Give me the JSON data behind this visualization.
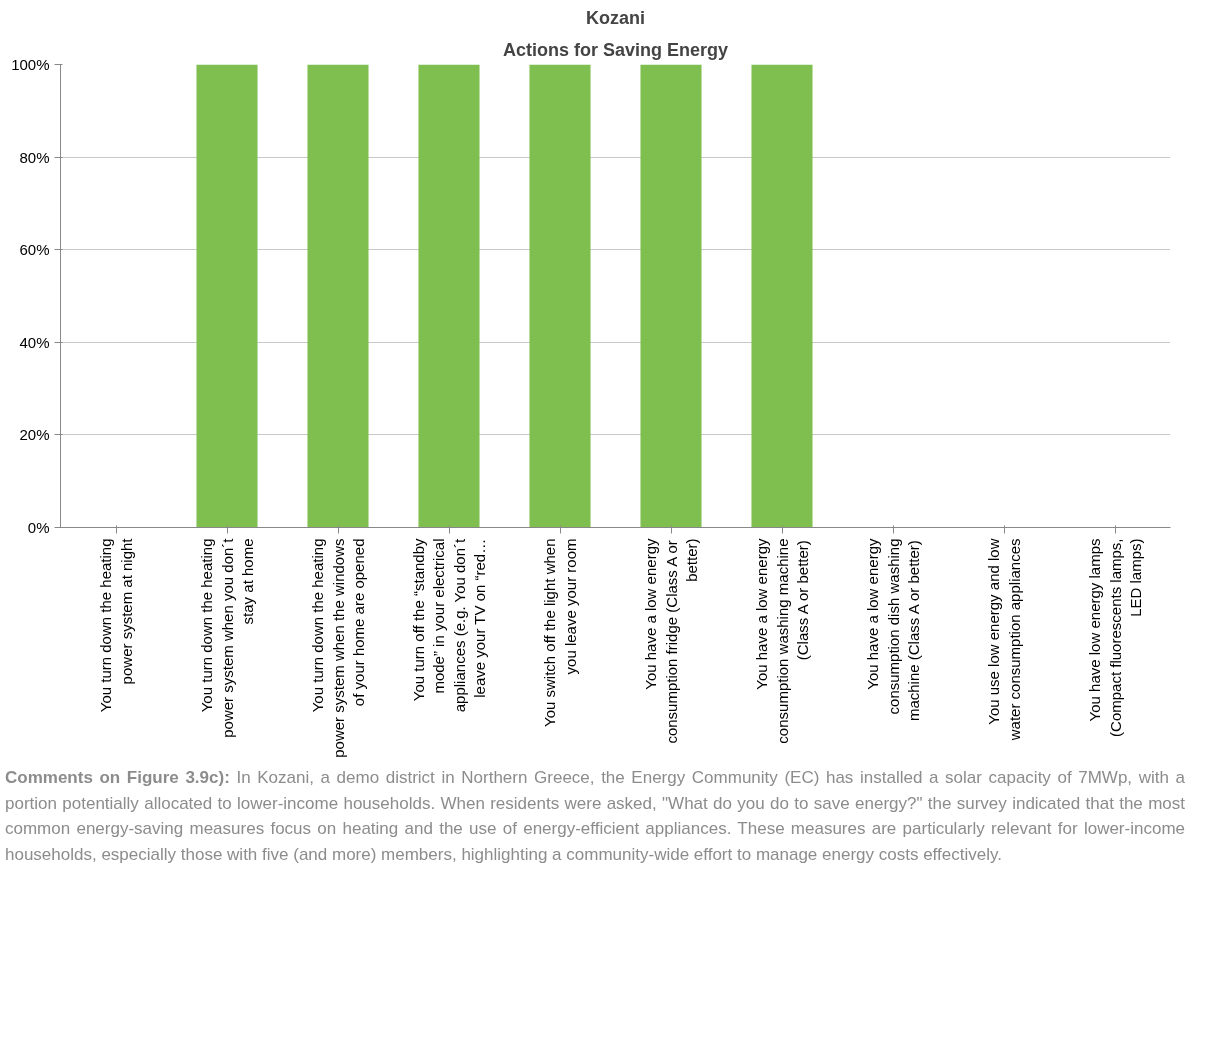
{
  "chart_data": {
    "type": "bar",
    "title": "Kozani",
    "subtitle": "Actions for Saving Energy",
    "categories": [
      "You turn down the heating power system at night",
      "You turn down the heating power system when you don´t stay at home",
      "You turn down the heating power system when the windows of your home are opened",
      "You turn off the “standby mode” in your electrical appliances (e.g. You don´t leave your TV on “red…",
      "You switch off the light when you leave your room",
      "You have a low energy consumption fridge (Class A or better)",
      "You have a low energy consumption washing machine (Class A or better)",
      "You have a low energy consumption dish washing machine (Class A or better)",
      "You use low energy and low water consumption appliances",
      "You have low energy lamps (Compact fluorescents lamps, LED lamps)"
    ],
    "values": [
      0,
      100,
      100,
      100,
      100,
      100,
      100,
      0,
      0,
      0
    ],
    "color": "#7fbf4f",
    "ylim": [
      0,
      100
    ],
    "yticks": [
      {
        "value": 0,
        "label": "0%"
      },
      {
        "value": 20,
        "label": "20%"
      },
      {
        "value": 40,
        "label": "40%"
      },
      {
        "value": 60,
        "label": "60%"
      },
      {
        "value": 80,
        "label": "80%"
      },
      {
        "value": 100,
        "label": "100%"
      }
    ],
    "grid": "y",
    "annotations": [
      "Comments on Figure 3.9c):",
      "In Kozani, a demo district in Northern Greece, the Energy Community (EC) has installed a solar capacity of 7MWp, with a portion potentially allocated to lower-income households. When residents were asked, \"What do you do to save energy?\" the survey indicated that the most common energy-saving measures focus on heating and the use of energy-efficient appliances. These measures are particularly relevant for lower-income households, especially those with five (and more) members, highlighting a community-wide effort to manage energy costs effectively."
    ]
  }
}
